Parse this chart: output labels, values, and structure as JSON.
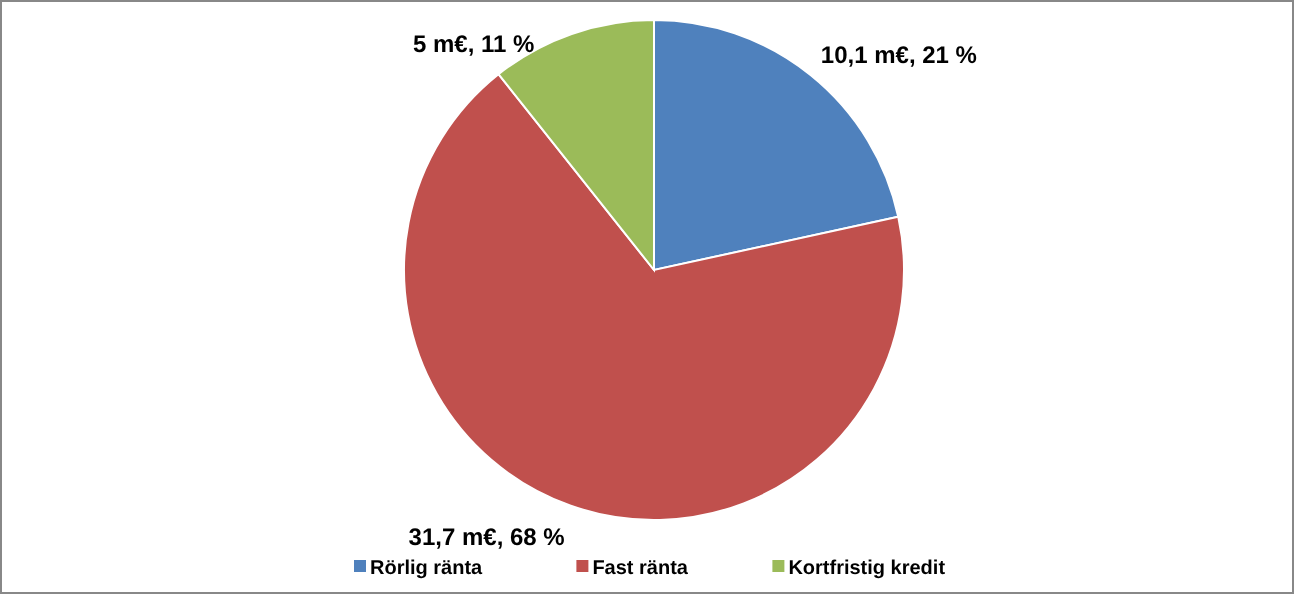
{
  "chart_data": {
    "type": "pie",
    "categories": [
      "Rörlig ränta",
      "Fast ränta",
      "Kortfristig kredit"
    ],
    "values": [
      10.1,
      31.7,
      5
    ],
    "value_labels": [
      "10,1 m€, 21 %",
      "31,7 m€, 68 %",
      "5 m€, 11 %"
    ],
    "colors": [
      "#4f81bd",
      "#c0504d",
      "#9bbb59"
    ],
    "legend": "bottom"
  }
}
